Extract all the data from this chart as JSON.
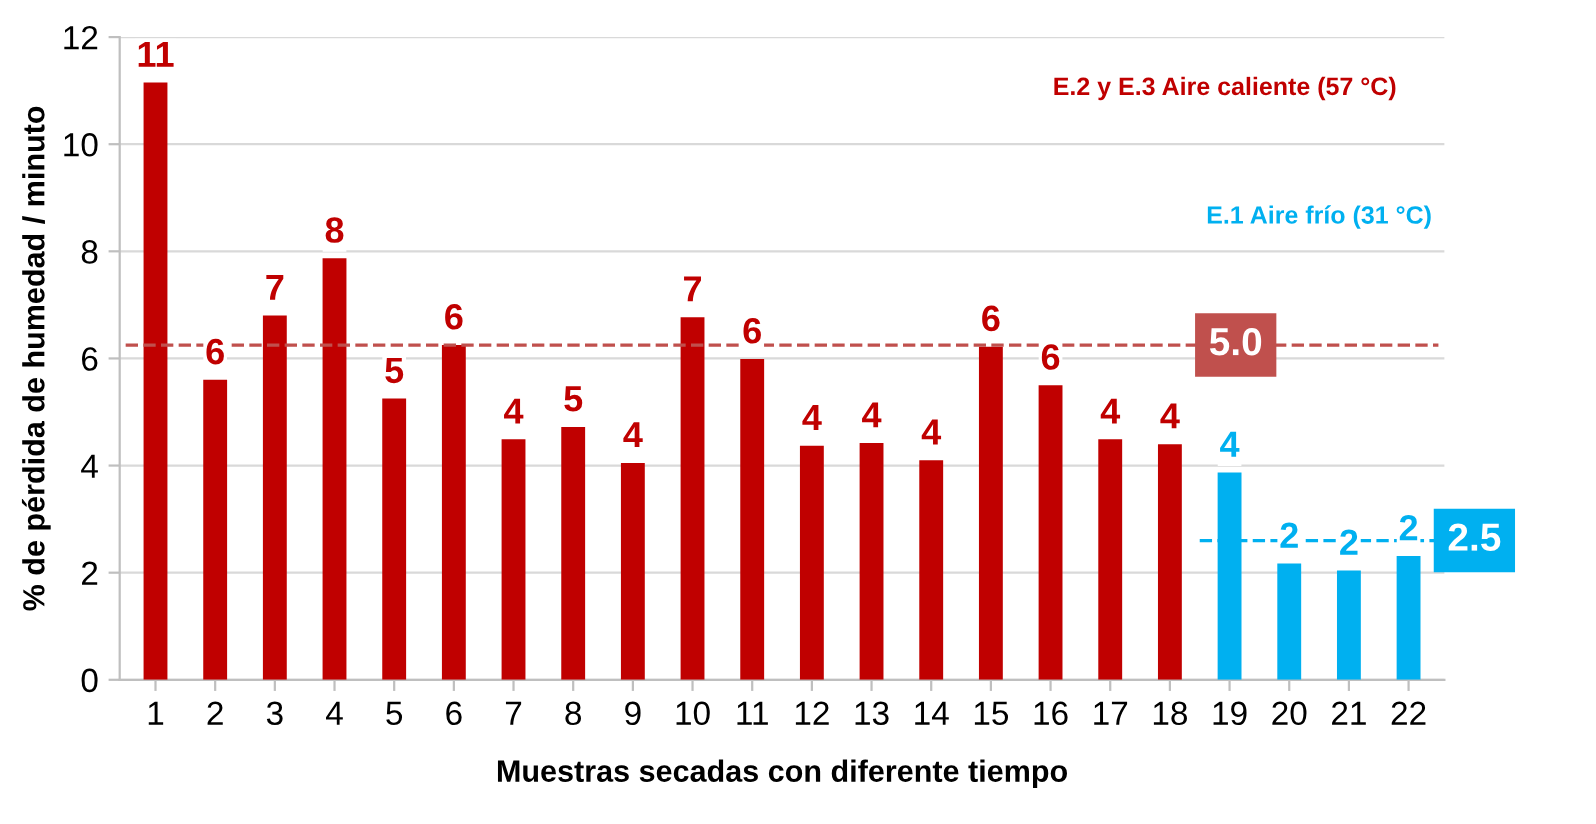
{
  "chart_data": {
    "type": "bar",
    "xlabel": "Muestras secadas con diferente tiempo",
    "ylabel": "% de pérdida de humedad / minuto",
    "categories": [
      "1",
      "2",
      "3",
      "4",
      "5",
      "6",
      "7",
      "8",
      "9",
      "10",
      "11",
      "12",
      "13",
      "14",
      "15",
      "16",
      "17",
      "18",
      "19",
      "20",
      "21",
      "22"
    ],
    "series": [
      {
        "name": "E.2 y E.3 Aire caliente (57 °C)",
        "color": "#c00000",
        "values": [
          11.15,
          5.6,
          6.8,
          7.87,
          5.25,
          6.25,
          4.49,
          4.72,
          4.05,
          6.77,
          5.99,
          4.37,
          4.42,
          4.1,
          6.22,
          5.5,
          4.49,
          4.4,
          null,
          null,
          null,
          null
        ],
        "value_labels": [
          "11",
          "6",
          "7",
          "8",
          "5",
          "6",
          "4",
          "5",
          "4",
          "7",
          "6",
          "4",
          "4",
          "4",
          "6",
          "6",
          "4",
          "4",
          null,
          null,
          null,
          null
        ]
      },
      {
        "name": "E.1 Aire frío (31 °C)",
        "color": "#00b0f0",
        "values": [
          null,
          null,
          null,
          null,
          null,
          null,
          null,
          null,
          null,
          null,
          null,
          null,
          null,
          null,
          null,
          null,
          null,
          null,
          3.87,
          2.17,
          2.04,
          2.31
        ],
        "value_labels": [
          null,
          null,
          null,
          null,
          null,
          null,
          null,
          null,
          null,
          null,
          null,
          null,
          null,
          null,
          null,
          null,
          null,
          null,
          "4",
          "2",
          "2",
          "2"
        ]
      }
    ],
    "ylim": [
      0,
      12
    ],
    "yticks": [
      0,
      2,
      4,
      6,
      8,
      10,
      12
    ],
    "grid": "y",
    "legend": "top right",
    "ref_lines": [
      {
        "axis": "y",
        "value": 6.25,
        "color": "#c0504d",
        "line_style": "dashed"
      },
      {
        "axis": "y",
        "value": 2.6,
        "color": "#00b0f0",
        "line_style": "dashed"
      }
    ],
    "annotations": [
      {
        "text": "5.0",
        "x": "18",
        "y": 6.25
      },
      {
        "text": "2.5",
        "x": "22",
        "y": 2.6
      }
    ]
  }
}
